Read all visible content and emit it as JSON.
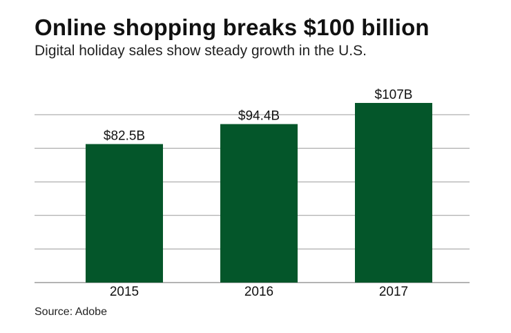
{
  "header": {
    "title": "Online shopping breaks $100 billion",
    "subtitle": "Digital holiday sales show steady growth in the U.S."
  },
  "footer": {
    "source": "Source: Adobe"
  },
  "colors": {
    "bar": "#04562A",
    "grid": "#9a9a9a",
    "text": "#111111"
  },
  "chart_data": {
    "type": "bar",
    "title": "Online shopping breaks $100 billion",
    "subtitle": "Digital holiday sales show steady growth in the U.S.",
    "categories": [
      "2015",
      "2016",
      "2017"
    ],
    "values": [
      82.5,
      94.4,
      107
    ],
    "value_labels": [
      "$82.5B",
      "$94.4B",
      "$107B"
    ],
    "xlabel": "",
    "ylabel": "",
    "unit": "billion USD",
    "ylim": [
      0,
      120
    ],
    "gridlines": [
      0,
      20,
      40,
      60,
      80,
      100
    ],
    "grid": true,
    "legend": "none"
  }
}
